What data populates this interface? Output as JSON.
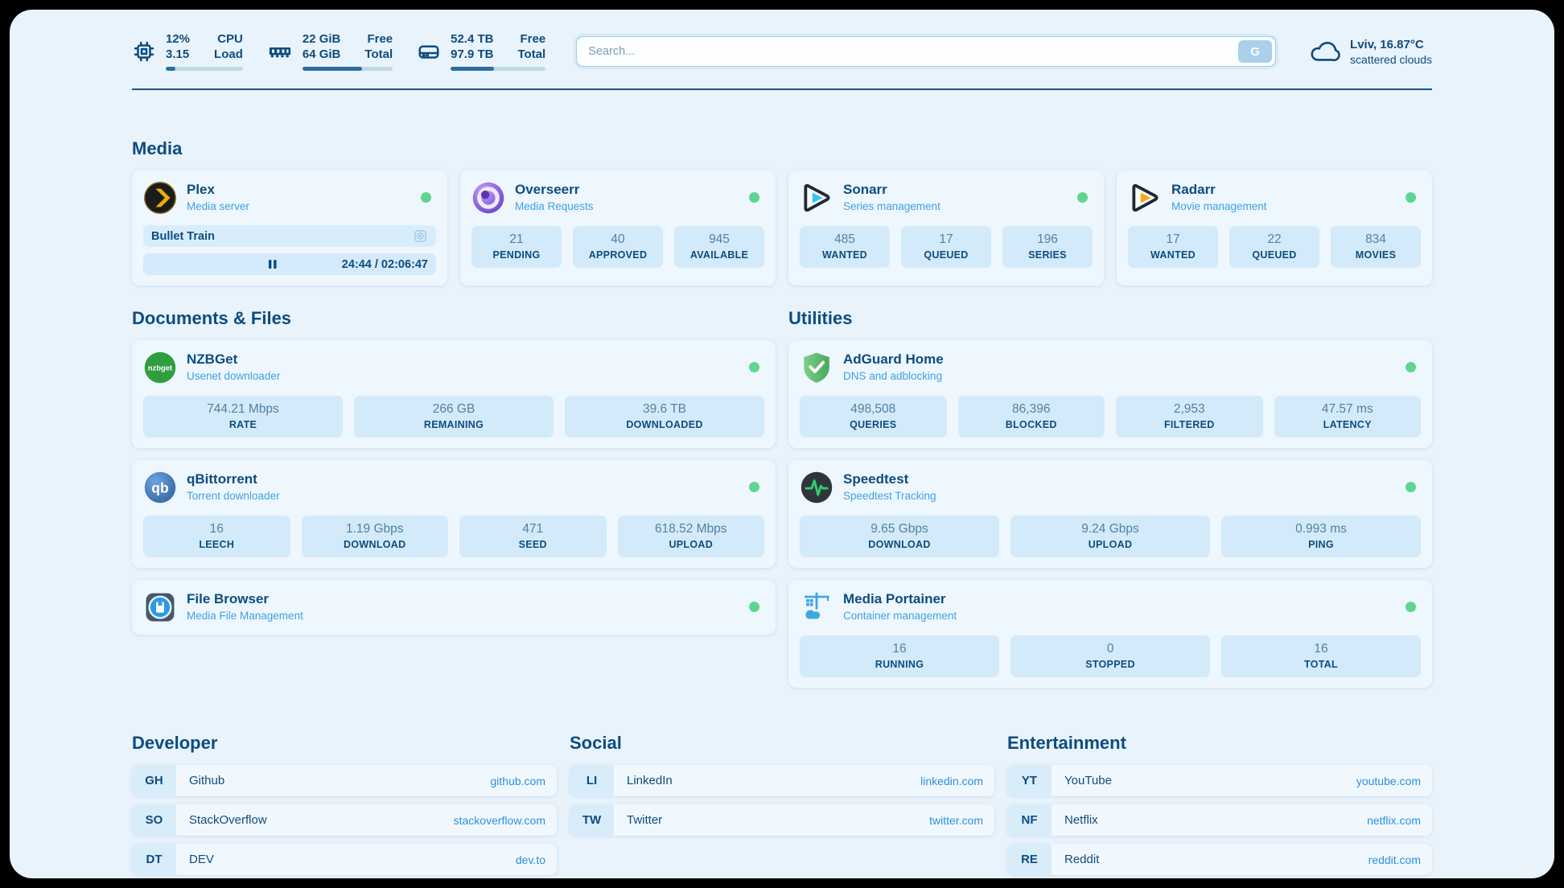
{
  "theme": {
    "background": "#e9f3fc",
    "card": "#eef7fe",
    "stat_box": "#d3eafa",
    "navy_text": "#0d4c7e",
    "subtitle_blue": "#3fa0e2",
    "link_blue": "#2e90da",
    "status_online_green": "#5fd68f"
  },
  "header": {
    "stats": [
      {
        "icon": "cpu-icon",
        "val1": "12%",
        "val2": "3.15",
        "lab1": "CPU",
        "lab2": "Load",
        "progress": 12
      },
      {
        "icon": "ram-icon",
        "val1": "22 GiB",
        "val2": "64 GiB",
        "lab1": "Free",
        "lab2": "Total",
        "progress": 66
      },
      {
        "icon": "disk-icon",
        "val1": "52.4 TB",
        "val2": "97.9 TB",
        "lab1": "Free",
        "lab2": "Total",
        "progress": 46
      }
    ],
    "search": {
      "placeholder": "Search...",
      "button": "G"
    },
    "weather": {
      "location": "Lviv, 16.87°C",
      "condition": "scattered clouds"
    }
  },
  "media": {
    "title": "Media",
    "plex": {
      "name": "Plex",
      "subtitle": "Media server",
      "now_playing": "Bullet Train",
      "time": "24:44 / 02:06:47",
      "progress": 19
    },
    "overseerr": {
      "name": "Overseerr",
      "subtitle": "Media Requests",
      "stats": [
        {
          "value": "21",
          "label": "PENDING"
        },
        {
          "value": "40",
          "label": "APPROVED"
        },
        {
          "value": "945",
          "label": "AVAILABLE"
        }
      ]
    },
    "sonarr": {
      "name": "Sonarr",
      "subtitle": "Series management",
      "stats": [
        {
          "value": "485",
          "label": "WANTED"
        },
        {
          "value": "17",
          "label": "QUEUED"
        },
        {
          "value": "196",
          "label": "SERIES"
        }
      ]
    },
    "radarr": {
      "name": "Radarr",
      "subtitle": "Movie management",
      "stats": [
        {
          "value": "17",
          "label": "WANTED"
        },
        {
          "value": "22",
          "label": "QUEUED"
        },
        {
          "value": "834",
          "label": "MOVIES"
        }
      ]
    }
  },
  "documents": {
    "title": "Documents & Files",
    "nzbget": {
      "name": "NZBGet",
      "subtitle": "Usenet downloader",
      "stats": [
        {
          "value": "744.21 Mbps",
          "label": "RATE"
        },
        {
          "value": "266 GB",
          "label": "REMAINING"
        },
        {
          "value": "39.6 TB",
          "label": "DOWNLOADED"
        }
      ]
    },
    "qbittorrent": {
      "name": "qBittorrent",
      "subtitle": "Torrent downloader",
      "stats": [
        {
          "value": "16",
          "label": "LEECH"
        },
        {
          "value": "1.19 Gbps",
          "label": "DOWNLOAD"
        },
        {
          "value": "471",
          "label": "SEED"
        },
        {
          "value": "618.52 Mbps",
          "label": "UPLOAD"
        }
      ]
    },
    "filebrowser": {
      "name": "File Browser",
      "subtitle": "Media File Management"
    }
  },
  "utilities": {
    "title": "Utilities",
    "adguard": {
      "name": "AdGuard Home",
      "subtitle": "DNS and adblocking",
      "stats": [
        {
          "value": "498,508",
          "label": "QUERIES"
        },
        {
          "value": "86,396",
          "label": "BLOCKED"
        },
        {
          "value": "2,953",
          "label": "FILTERED"
        },
        {
          "value": "47.57 ms",
          "label": "LATENCY"
        }
      ]
    },
    "speedtest": {
      "name": "Speedtest",
      "subtitle": "Speedtest Tracking",
      "stats": [
        {
          "value": "9.65 Gbps",
          "label": "DOWNLOAD"
        },
        {
          "value": "9.24 Gbps",
          "label": "UPLOAD"
        },
        {
          "value": "0.993 ms",
          "label": "PING"
        }
      ]
    },
    "portainer": {
      "name": "Media Portainer",
      "subtitle": "Container management",
      "stats": [
        {
          "value": "16",
          "label": "RUNNING"
        },
        {
          "value": "0",
          "label": "STOPPED"
        },
        {
          "value": "16",
          "label": "TOTAL"
        }
      ]
    }
  },
  "links": [
    {
      "title": "Developer",
      "items": [
        {
          "tag": "GH",
          "name": "Github",
          "url": "github.com"
        },
        {
          "tag": "SO",
          "name": "StackOverflow",
          "url": "stackoverflow.com"
        },
        {
          "tag": "DT",
          "name": "DEV",
          "url": "dev.to"
        }
      ]
    },
    {
      "title": "Social",
      "items": [
        {
          "tag": "LI",
          "name": "LinkedIn",
          "url": "linkedin.com"
        },
        {
          "tag": "TW",
          "name": "Twitter",
          "url": "twitter.com"
        }
      ]
    },
    {
      "title": "Entertainment",
      "items": [
        {
          "tag": "YT",
          "name": "YouTube",
          "url": "youtube.com"
        },
        {
          "tag": "NF",
          "name": "Netflix",
          "url": "netflix.com"
        },
        {
          "tag": "RE",
          "name": "Reddit",
          "url": "reddit.com"
        }
      ]
    }
  ]
}
